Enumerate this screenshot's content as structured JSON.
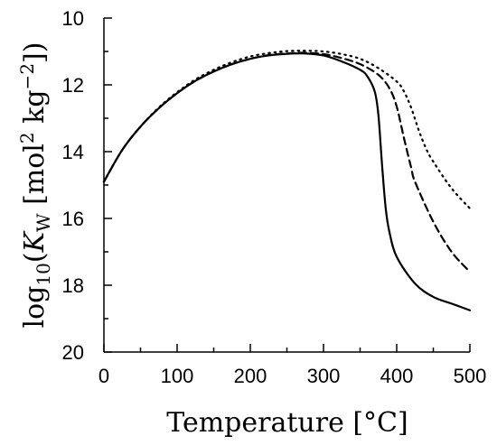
{
  "chart_data": {
    "type": "line",
    "title": "",
    "xlabel": "Temperature [°C]",
    "ylabel": "log₁₀(K_W [mol² kg⁻²])",
    "ylabel_parts": {
      "pre": "log",
      "pre_sub": "10",
      "open": "(",
      "var": "K",
      "var_sub": "W",
      "unit_open": " [mol",
      "sup1": "2",
      "unit_mid": " kg",
      "sup2": "−2",
      "close": "])"
    },
    "xlim": [
      0,
      500
    ],
    "ylim": [
      10,
      20
    ],
    "y_inverted": true,
    "xticks": [
      0,
      100,
      200,
      300,
      400,
      500
    ],
    "yticks": [
      10,
      12,
      14,
      16,
      18,
      20
    ],
    "grid": false,
    "legend": "none",
    "series": [
      {
        "style": "solid",
        "x": [
          0,
          25,
          50,
          75,
          100,
          125,
          150,
          175,
          200,
          225,
          250,
          275,
          300,
          325,
          350,
          360,
          370,
          375,
          380,
          385,
          390,
          400,
          425,
          450,
          475,
          500
        ],
        "y": [
          14.9,
          13.95,
          13.25,
          12.7,
          12.25,
          11.88,
          11.6,
          11.38,
          11.22,
          11.12,
          11.07,
          11.06,
          11.12,
          11.3,
          11.55,
          11.75,
          12.2,
          12.9,
          14.4,
          15.7,
          16.4,
          17.15,
          17.95,
          18.35,
          18.55,
          18.75
        ]
      },
      {
        "style": "dashed",
        "x": [
          0,
          25,
          50,
          75,
          100,
          125,
          150,
          175,
          200,
          225,
          250,
          275,
          300,
          325,
          350,
          375,
          390,
          400,
          410,
          420,
          425,
          450,
          475,
          500
        ],
        "y": [
          14.9,
          13.95,
          13.25,
          12.7,
          12.25,
          11.88,
          11.6,
          11.38,
          11.22,
          11.11,
          11.06,
          11.04,
          11.08,
          11.2,
          11.38,
          11.7,
          12.1,
          12.65,
          13.6,
          14.5,
          14.9,
          16.1,
          17.0,
          17.6
        ]
      },
      {
        "style": "dotted",
        "x": [
          0,
          25,
          50,
          75,
          100,
          125,
          150,
          175,
          200,
          225,
          250,
          275,
          300,
          325,
          350,
          375,
          400,
          410,
          420,
          430,
          440,
          450,
          475,
          500
        ],
        "y": [
          14.9,
          13.95,
          13.25,
          12.68,
          12.22,
          11.84,
          11.55,
          11.32,
          11.15,
          11.05,
          10.99,
          10.98,
          11.0,
          11.08,
          11.22,
          11.5,
          11.9,
          12.2,
          12.7,
          13.35,
          13.9,
          14.3,
          15.1,
          15.7
        ]
      }
    ]
  }
}
